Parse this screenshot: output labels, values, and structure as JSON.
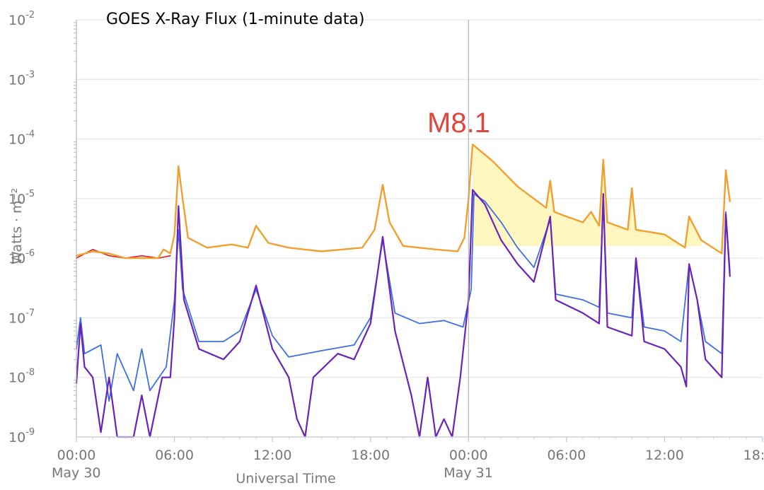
{
  "chart_data": {
    "type": "line",
    "title": "GOES X-Ray Flux (1-minute data)",
    "xlabel": "Universal Time",
    "ylabel": "Watts · m⁻²",
    "y_scale": "log",
    "ylim": [
      "1e-9",
      "1e-2"
    ],
    "y_ticks": [
      {
        "base": "10",
        "exp": "-2"
      },
      {
        "base": "10",
        "exp": "-3"
      },
      {
        "base": "10",
        "exp": "-4"
      },
      {
        "base": "10",
        "exp": "-5"
      },
      {
        "base": "10",
        "exp": "-6"
      },
      {
        "base": "10",
        "exp": "-7"
      },
      {
        "base": "10",
        "exp": "-8"
      },
      {
        "base": "10",
        "exp": "-9"
      }
    ],
    "xlim": [
      "2017-05-30T00:00",
      "2017-05-31T18:00"
    ],
    "x_ticks": [
      "00:00",
      "06:00",
      "12:00",
      "18:00",
      "00:00",
      "06:00",
      "12:00",
      "18:00"
    ],
    "date_labels": [
      "May 30",
      "May 31"
    ],
    "annotation": {
      "text": "M8.1"
    },
    "grid": true,
    "series": [
      {
        "color": "#f0a030",
        "width": 2.4,
        "points": [
          [
            "2017-05-30T00:00",
            1.1e-06
          ],
          [
            "2017-05-30T01:00",
            1.3e-06
          ],
          [
            "2017-05-30T02:00",
            1.2e-06
          ],
          [
            "2017-05-30T03:00",
            1e-06
          ],
          [
            "2017-05-30T04:00",
            1e-06
          ],
          [
            "2017-05-30T05:00",
            1e-06
          ],
          [
            "2017-05-30T05:20",
            1.4e-06
          ],
          [
            "2017-05-30T05:45",
            1.2e-06
          ],
          [
            "2017-05-30T06:00",
            2.5e-06
          ],
          [
            "2017-05-30T06:15",
            3.5e-05
          ],
          [
            "2017-05-30T06:30",
            1e-05
          ],
          [
            "2017-05-30T06:50",
            2.2e-06
          ],
          [
            "2017-05-30T08:00",
            1.5e-06
          ],
          [
            "2017-05-30T09:30",
            1.7e-06
          ],
          [
            "2017-05-30T10:30",
            1.5e-06
          ],
          [
            "2017-05-30T11:00",
            3.5e-06
          ],
          [
            "2017-05-30T11:45",
            1.8e-06
          ],
          [
            "2017-05-30T13:00",
            1.5e-06
          ],
          [
            "2017-05-30T15:00",
            1.3e-06
          ],
          [
            "2017-05-30T17:30",
            1.5e-06
          ],
          [
            "2017-05-30T18:15",
            3e-06
          ],
          [
            "2017-05-30T18:45",
            1.7e-05
          ],
          [
            "2017-05-30T19:10",
            4e-06
          ],
          [
            "2017-05-30T20:00",
            1.6e-06
          ],
          [
            "2017-05-30T22:00",
            1.4e-06
          ],
          [
            "2017-05-30T23:20",
            1.3e-06
          ],
          [
            "2017-05-30T23:45",
            2.2e-06
          ],
          [
            "2017-05-31T00:00",
            1e-05
          ],
          [
            "2017-05-31T00:15",
            8.1e-05
          ],
          [
            "2017-05-31T01:30",
            4.2e-05
          ],
          [
            "2017-05-31T03:00",
            1.6e-05
          ],
          [
            "2017-05-31T04:00",
            1e-05
          ],
          [
            "2017-05-31T04:45",
            7e-06
          ],
          [
            "2017-05-31T05:00",
            2e-05
          ],
          [
            "2017-05-31T05:15",
            6e-06
          ],
          [
            "2017-05-31T06:00",
            5e-06
          ],
          [
            "2017-05-31T07:00",
            4e-06
          ],
          [
            "2017-05-31T07:30",
            6e-06
          ],
          [
            "2017-05-31T08:00",
            3.5e-06
          ],
          [
            "2017-05-31T08:15",
            4.5e-05
          ],
          [
            "2017-05-31T08:30",
            4e-06
          ],
          [
            "2017-05-31T09:45",
            3e-06
          ],
          [
            "2017-05-31T10:00",
            1.5e-05
          ],
          [
            "2017-05-31T10:15",
            3e-06
          ],
          [
            "2017-05-31T12:00",
            2.5e-06
          ],
          [
            "2017-05-31T13:15",
            1.5e-06
          ],
          [
            "2017-05-31T13:30",
            5e-06
          ],
          [
            "2017-05-31T14:15",
            2e-06
          ],
          [
            "2017-05-31T15:30",
            1.2e-06
          ],
          [
            "2017-05-31T15:45",
            3e-05
          ],
          [
            "2017-05-31T16:00",
            9e-06
          ]
        ]
      },
      {
        "color": "#3d6fe0",
        "width": 1.8,
        "points": [
          [
            "2017-05-30T00:00",
            3e-08
          ],
          [
            "2017-05-30T00:15",
            1e-07
          ],
          [
            "2017-05-30T00:30",
            2.5e-08
          ],
          [
            "2017-05-30T01:30",
            3.5e-08
          ],
          [
            "2017-05-30T02:00",
            4e-09
          ],
          [
            "2017-05-30T02:30",
            2.5e-08
          ],
          [
            "2017-05-30T03:30",
            6e-09
          ],
          [
            "2017-05-30T04:00",
            3e-08
          ],
          [
            "2017-05-30T04:30",
            6e-09
          ],
          [
            "2017-05-30T05:30",
            1.5e-08
          ],
          [
            "2017-05-30T06:00",
            2e-07
          ],
          [
            "2017-05-30T06:15",
            3e-06
          ],
          [
            "2017-05-30T06:30",
            3e-07
          ],
          [
            "2017-05-30T07:30",
            4e-08
          ],
          [
            "2017-05-30T09:00",
            4e-08
          ],
          [
            "2017-05-30T10:00",
            6e-08
          ],
          [
            "2017-05-30T11:00",
            3e-07
          ],
          [
            "2017-05-30T12:00",
            5e-08
          ],
          [
            "2017-05-30T13:00",
            2.2e-08
          ],
          [
            "2017-05-30T15:00",
            2.8e-08
          ],
          [
            "2017-05-30T17:00",
            3.5e-08
          ],
          [
            "2017-05-30T18:00",
            1e-07
          ],
          [
            "2017-05-30T18:45",
            2e-06
          ],
          [
            "2017-05-30T19:30",
            1.2e-07
          ],
          [
            "2017-05-30T21:00",
            8e-08
          ],
          [
            "2017-05-30T22:30",
            9e-08
          ],
          [
            "2017-05-30T23:40",
            7e-08
          ],
          [
            "2017-05-31T00:10",
            3e-07
          ],
          [
            "2017-05-31T00:20",
            1.2e-05
          ],
          [
            "2017-05-31T01:00",
            9e-06
          ],
          [
            "2017-05-31T02:00",
            4e-06
          ],
          [
            "2017-05-31T03:00",
            1.5e-06
          ],
          [
            "2017-05-31T04:00",
            7e-07
          ],
          [
            "2017-05-31T05:00",
            4.5e-06
          ],
          [
            "2017-05-31T05:20",
            2.5e-07
          ],
          [
            "2017-05-31T07:00",
            2e-07
          ],
          [
            "2017-05-31T08:00",
            1.5e-07
          ],
          [
            "2017-05-31T08:15",
            1e-05
          ],
          [
            "2017-05-31T08:30",
            1.2e-07
          ],
          [
            "2017-05-31T10:00",
            1e-07
          ],
          [
            "2017-05-31T10:15",
            1e-06
          ],
          [
            "2017-05-31T10:45",
            7e-08
          ],
          [
            "2017-05-31T12:00",
            6e-08
          ],
          [
            "2017-05-31T13:00",
            4e-08
          ],
          [
            "2017-05-31T13:30",
            8e-07
          ],
          [
            "2017-05-31T14:00",
            2e-07
          ],
          [
            "2017-05-31T14:30",
            4e-08
          ],
          [
            "2017-05-31T15:30",
            2.5e-08
          ],
          [
            "2017-05-31T15:45",
            6e-06
          ],
          [
            "2017-05-31T16:00",
            6e-07
          ]
        ]
      },
      {
        "color": "#6a22b8",
        "width": 2.2,
        "points": [
          [
            "2017-05-30T00:00",
            8e-09
          ],
          [
            "2017-05-30T00:15",
            8e-08
          ],
          [
            "2017-05-30T00:30",
            1.5e-08
          ],
          [
            "2017-05-30T01:00",
            1e-08
          ],
          [
            "2017-05-30T01:30",
            1.2e-09
          ],
          [
            "2017-05-30T02:00",
            1e-08
          ],
          [
            "2017-05-30T02:30",
            1e-09
          ],
          [
            "2017-05-30T03:30",
            1e-09
          ],
          [
            "2017-05-30T04:00",
            5e-09
          ],
          [
            "2017-05-30T04:30",
            1e-09
          ],
          [
            "2017-05-30T05:15",
            1e-08
          ],
          [
            "2017-05-30T05:45",
            1e-08
          ],
          [
            "2017-05-30T06:00",
            1e-07
          ],
          [
            "2017-05-30T06:15",
            7.5e-06
          ],
          [
            "2017-05-30T06:35",
            2e-07
          ],
          [
            "2017-05-30T07:30",
            3e-08
          ],
          [
            "2017-05-30T09:00",
            2e-08
          ],
          [
            "2017-05-30T10:00",
            4e-08
          ],
          [
            "2017-05-30T11:00",
            3.5e-07
          ],
          [
            "2017-05-30T12:00",
            3e-08
          ],
          [
            "2017-05-30T13:00",
            1e-08
          ],
          [
            "2017-05-30T13:30",
            2e-09
          ],
          [
            "2017-05-30T14:00",
            1e-09
          ],
          [
            "2017-05-30T14:30",
            1e-08
          ],
          [
            "2017-05-30T16:00",
            2.5e-08
          ],
          [
            "2017-05-30T17:00",
            2e-08
          ],
          [
            "2017-05-30T18:00",
            8e-08
          ],
          [
            "2017-05-30T18:45",
            2.3e-06
          ],
          [
            "2017-05-30T19:30",
            6e-08
          ],
          [
            "2017-05-30T20:30",
            5e-09
          ],
          [
            "2017-05-30T21:00",
            1e-09
          ],
          [
            "2017-05-30T21:30",
            1e-08
          ],
          [
            "2017-05-30T22:00",
            1e-09
          ],
          [
            "2017-05-30T22:30",
            2e-09
          ],
          [
            "2017-05-30T23:00",
            1e-09
          ],
          [
            "2017-05-30T23:30",
            1e-08
          ],
          [
            "2017-05-31T00:00",
            2e-07
          ],
          [
            "2017-05-31T00:15",
            1.4e-05
          ],
          [
            "2017-05-31T01:00",
            8e-06
          ],
          [
            "2017-05-31T02:00",
            2e-06
          ],
          [
            "2017-05-31T03:00",
            8e-07
          ],
          [
            "2017-05-31T04:00",
            4e-07
          ],
          [
            "2017-05-31T05:00",
            5e-06
          ],
          [
            "2017-05-31T05:20",
            2e-07
          ],
          [
            "2017-05-31T07:00",
            1.2e-07
          ],
          [
            "2017-05-31T08:00",
            8e-08
          ],
          [
            "2017-05-31T08:15",
            1.2e-05
          ],
          [
            "2017-05-31T08:30",
            7e-08
          ],
          [
            "2017-05-31T10:00",
            5e-08
          ],
          [
            "2017-05-31T10:15",
            1e-06
          ],
          [
            "2017-05-31T10:45",
            4e-08
          ],
          [
            "2017-05-31T12:00",
            3e-08
          ],
          [
            "2017-05-31T13:00",
            1.5e-08
          ],
          [
            "2017-05-31T13:20",
            7e-09
          ],
          [
            "2017-05-31T13:30",
            8e-07
          ],
          [
            "2017-05-31T14:00",
            2e-07
          ],
          [
            "2017-05-31T14:30",
            2e-08
          ],
          [
            "2017-05-31T15:30",
            1e-08
          ],
          [
            "2017-05-31T15:45",
            5.5e-06
          ],
          [
            "2017-05-31T16:00",
            5e-07
          ]
        ]
      },
      {
        "color": "#d82020",
        "width": 1.6,
        "points": [
          [
            "2017-05-30T00:00",
            1e-06
          ],
          [
            "2017-05-30T01:00",
            1.4e-06
          ],
          [
            "2017-05-30T02:00",
            1.1e-06
          ],
          [
            "2017-05-30T03:00",
            1e-06
          ],
          [
            "2017-05-30T04:00",
            1.1e-06
          ],
          [
            "2017-05-30T05:00",
            1e-06
          ],
          [
            "2017-05-30T05:45",
            1.1e-06
          ]
        ]
      }
    ],
    "shaded_region": {
      "color": "#fff6c0",
      "from": "2017-05-31T00:15",
      "to": "2017-05-31T14:15",
      "floor": 1.6e-06
    }
  }
}
